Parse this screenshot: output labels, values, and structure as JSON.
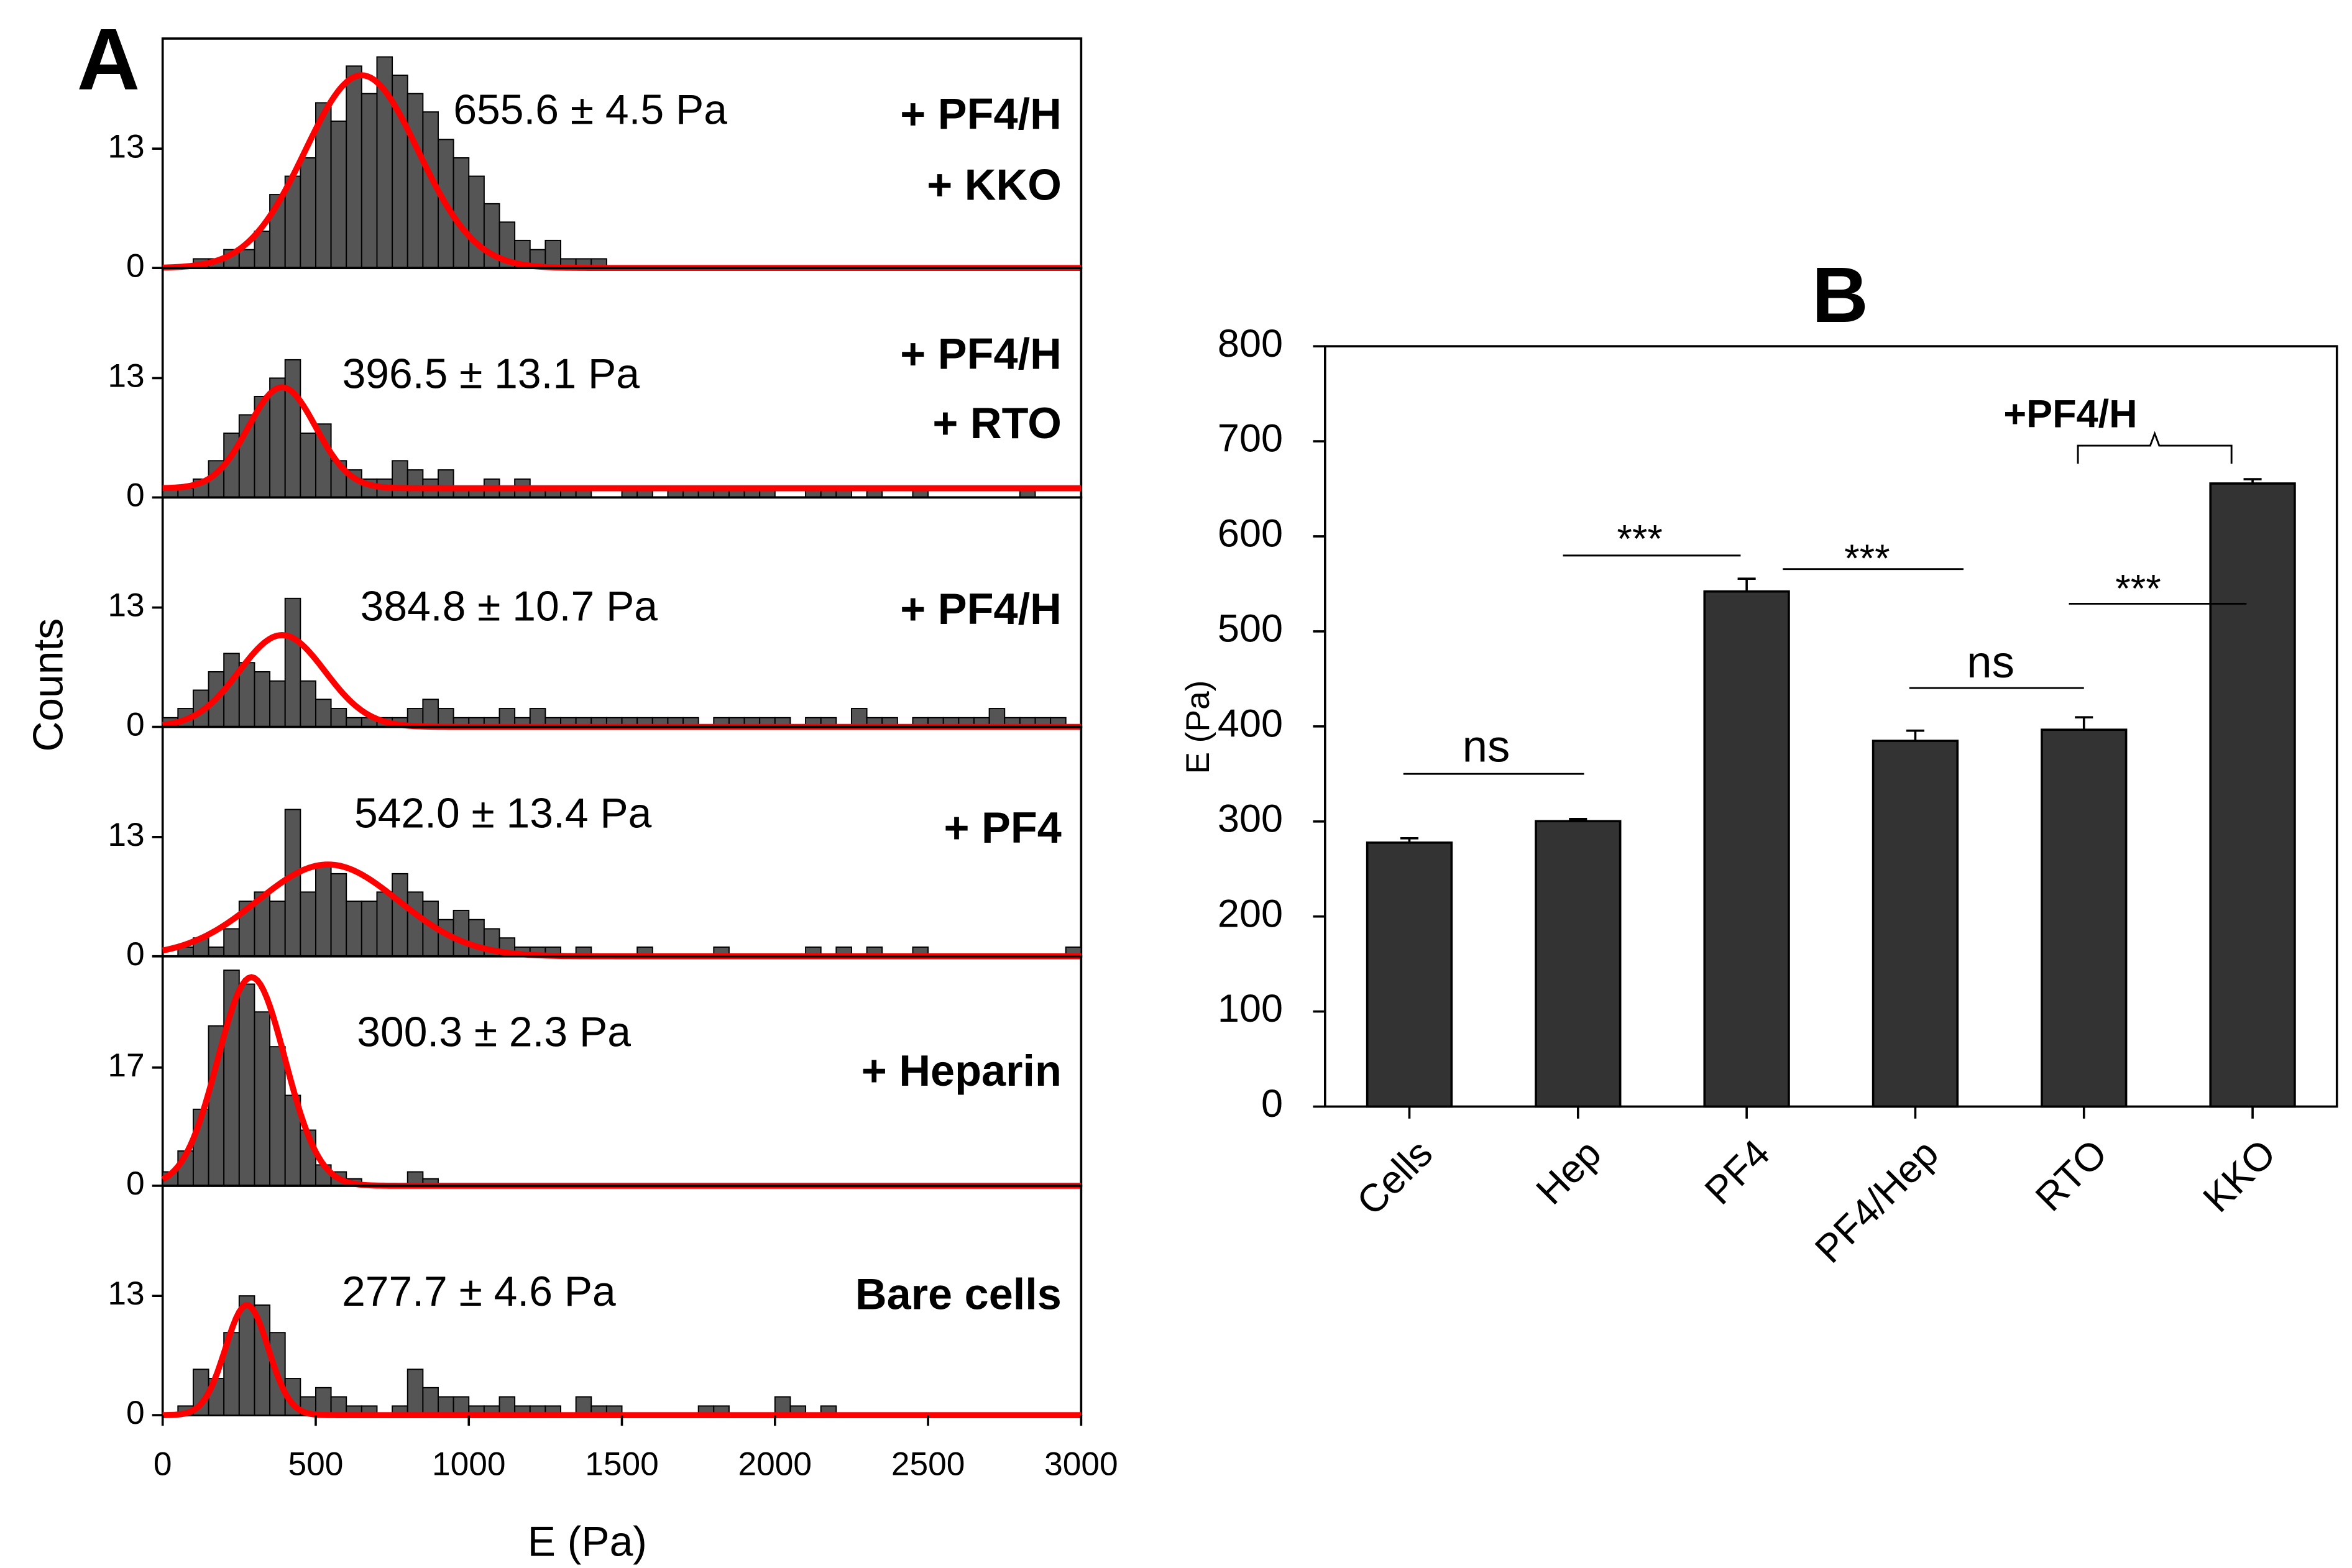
{
  "figure": {
    "panel_label": "A",
    "ylabel": "Counts",
    "xlabel": "E (Pa)"
  },
  "chart_data": [
    {
      "type": "histogram",
      "annotation": "655.6 ± 4.5 Pa",
      "label": [
        "+ PF4/H",
        "+ KKO"
      ],
      "color": "#555555",
      "fit_color": "#ff0000",
      "fit": {
        "center": 650,
        "sigma": 185,
        "amplitude": 21,
        "baseline": 0
      },
      "bins": [
        0,
        50,
        100,
        150,
        200,
        250,
        300,
        350,
        400,
        450,
        500,
        550,
        600,
        650,
        700,
        750,
        800,
        850,
        900,
        950,
        1000,
        1050,
        1100,
        1150,
        1200,
        1250,
        1300,
        1350,
        1400,
        1450,
        1500,
        1550,
        1600,
        1650,
        1700,
        1750,
        1800,
        1850,
        1900,
        1950,
        2000,
        2050,
        2100,
        2150,
        2200,
        2250,
        2300,
        2350,
        2400,
        2450,
        2500,
        2550,
        2600,
        2650,
        2700,
        2750,
        2800,
        2850,
        2900,
        2950,
        3000
      ],
      "values": [
        0,
        0,
        1,
        1,
        2,
        2,
        4,
        8,
        10,
        12,
        18,
        16,
        22,
        19,
        23,
        21,
        19,
        17,
        14,
        12,
        10,
        7,
        5,
        3,
        2,
        3,
        1,
        1,
        1,
        0,
        0,
        0,
        0,
        0,
        0,
        0,
        0,
        0,
        0,
        0,
        0,
        0,
        0,
        0,
        0,
        0,
        0,
        0,
        0,
        0,
        0,
        0,
        0,
        0,
        0,
        0,
        0,
        0,
        0,
        0
      ],
      "xlim": [
        0,
        3000
      ],
      "ylim": [
        0,
        25
      ],
      "yticks": [
        0,
        13
      ]
    },
    {
      "type": "histogram",
      "annotation": "396.5 ± 13.1 Pa",
      "label": [
        "+ PF4/H",
        "+ RTO"
      ],
      "color": "#555555",
      "fit_color": "#ff0000",
      "fit": {
        "center": 390,
        "sigma": 110,
        "amplitude": 11,
        "baseline": 1
      },
      "bins": [
        0,
        50,
        100,
        150,
        200,
        250,
        300,
        350,
        400,
        450,
        500,
        550,
        600,
        650,
        700,
        750,
        800,
        850,
        900,
        950,
        1000,
        1050,
        1100,
        1150,
        1200,
        1250,
        1300,
        1350,
        1400,
        1450,
        1500,
        1550,
        1600,
        1650,
        1700,
        1750,
        1800,
        1850,
        1900,
        1950,
        2000,
        2050,
        2100,
        2150,
        2200,
        2250,
        2300,
        2350,
        2400,
        2450,
        2500,
        2550,
        2600,
        2650,
        2700,
        2750,
        2800,
        2850,
        2900,
        2950,
        3000
      ],
      "values": [
        1,
        1,
        2,
        4,
        7,
        9,
        11,
        13,
        15,
        7,
        8,
        4,
        3,
        2,
        2,
        4,
        3,
        2,
        3,
        1,
        1,
        2,
        1,
        2,
        1,
        1,
        1,
        1,
        0,
        0,
        1,
        1,
        0,
        1,
        1,
        1,
        1,
        1,
        1,
        1,
        0,
        0,
        1,
        1,
        1,
        0,
        1,
        0,
        0,
        1,
        0,
        0,
        0,
        0,
        0,
        0,
        1,
        0,
        0,
        0
      ],
      "xlim": [
        0,
        3000
      ],
      "ylim": [
        0,
        25
      ],
      "yticks": [
        0,
        13
      ]
    },
    {
      "type": "histogram",
      "annotation": "384.8 ± 10.7 Pa",
      "label": [
        "+ PF4/H"
      ],
      "color": "#555555",
      "fit_color": "#ff0000",
      "fit": {
        "center": 390,
        "sigma": 140,
        "amplitude": 10,
        "baseline": 0
      },
      "bins": [
        0,
        50,
        100,
        150,
        200,
        250,
        300,
        350,
        400,
        450,
        500,
        550,
        600,
        650,
        700,
        750,
        800,
        850,
        900,
        950,
        1000,
        1050,
        1100,
        1150,
        1200,
        1250,
        1300,
        1350,
        1400,
        1450,
        1500,
        1550,
        1600,
        1650,
        1700,
        1750,
        1800,
        1850,
        1900,
        1950,
        2000,
        2050,
        2100,
        2150,
        2200,
        2250,
        2300,
        2350,
        2400,
        2450,
        2500,
        2550,
        2600,
        2650,
        2700,
        2750,
        2800,
        2850,
        2900,
        2950,
        3000
      ],
      "values": [
        1,
        2,
        4,
        6,
        8,
        7,
        6,
        5,
        14,
        5,
        3,
        2,
        1,
        1,
        1,
        1,
        2,
        3,
        2,
        1,
        1,
        1,
        2,
        1,
        2,
        1,
        1,
        1,
        1,
        1,
        1,
        1,
        1,
        1,
        1,
        0,
        1,
        1,
        1,
        1,
        1,
        0,
        1,
        1,
        0,
        2,
        1,
        1,
        0,
        1,
        1,
        1,
        1,
        1,
        2,
        1,
        1,
        1,
        1,
        0
      ],
      "xlim": [
        0,
        3000
      ],
      "ylim": [
        0,
        25
      ],
      "yticks": [
        0,
        13
      ]
    },
    {
      "type": "histogram",
      "annotation": "542.0 ± 13.4 Pa",
      "label": [
        "+ PF4"
      ],
      "color": "#555555",
      "fit_color": "#ff0000",
      "fit": {
        "center": 540,
        "sigma": 230,
        "amplitude": 10,
        "baseline": 0
      },
      "bins": [
        0,
        50,
        100,
        150,
        200,
        250,
        300,
        350,
        400,
        450,
        500,
        550,
        600,
        650,
        700,
        750,
        800,
        850,
        900,
        950,
        1000,
        1050,
        1100,
        1150,
        1200,
        1250,
        1300,
        1350,
        1400,
        1450,
        1500,
        1550,
        1600,
        1650,
        1700,
        1750,
        1800,
        1850,
        1900,
        1950,
        2000,
        2050,
        2100,
        2150,
        2200,
        2250,
        2300,
        2350,
        2400,
        2450,
        2500,
        2550,
        2600,
        2650,
        2700,
        2750,
        2800,
        2850,
        2900,
        2950,
        3000
      ],
      "values": [
        0,
        1,
        2,
        1,
        3,
        6,
        7,
        6,
        16,
        7,
        10,
        9,
        6,
        6,
        7,
        9,
        7,
        6,
        4,
        5,
        4,
        3,
        2,
        1,
        1,
        1,
        0,
        1,
        0,
        0,
        0,
        1,
        0,
        0,
        0,
        0,
        1,
        0,
        0,
        0,
        0,
        0,
        1,
        0,
        1,
        0,
        1,
        0,
        0,
        1,
        0,
        0,
        0,
        0,
        0,
        0,
        0,
        0,
        0,
        1
      ],
      "xlim": [
        0,
        3000
      ],
      "ylim": [
        0,
        25
      ],
      "yticks": [
        0,
        13
      ]
    },
    {
      "type": "histogram",
      "annotation": "300.3 ± 2.3 Pa",
      "label": [
        "+ Heparin"
      ],
      "color": "#555555",
      "fit_color": "#ff0000",
      "fit": {
        "center": 290,
        "sigma": 110,
        "amplitude": 30,
        "baseline": 0
      },
      "bins": [
        0,
        50,
        100,
        150,
        200,
        250,
        300,
        350,
        400,
        450,
        500,
        550,
        600,
        650,
        700,
        750,
        800,
        850,
        900,
        950,
        1000,
        1050,
        1100,
        1150,
        1200,
        1250,
        1300,
        1350,
        1400,
        1450,
        1500,
        1550,
        1600,
        1650,
        1700,
        1750,
        1800,
        1850,
        1900,
        1950,
        2000,
        2050,
        2100,
        2150,
        2200,
        2250,
        2300,
        2350,
        2400,
        2450,
        2500,
        2550,
        2600,
        2650,
        2700,
        2750,
        2800,
        2850,
        2900,
        2950,
        3000
      ],
      "values": [
        2,
        5,
        11,
        23,
        31,
        29,
        25,
        20,
        13,
        8,
        3,
        2,
        1,
        0,
        0,
        0,
        2,
        1,
        0,
        0,
        0,
        0,
        0,
        0,
        0,
        0,
        0,
        0,
        0,
        0,
        0,
        0,
        0,
        0,
        0,
        0,
        0,
        0,
        0,
        0,
        0,
        0,
        0,
        0,
        0,
        0,
        0,
        0,
        0,
        0,
        0,
        0,
        0,
        0,
        0,
        0,
        0,
        0,
        0,
        0
      ],
      "xlim": [
        0,
        3000
      ],
      "ylim": [
        0,
        33
      ],
      "yticks": [
        0,
        17
      ]
    },
    {
      "type": "histogram",
      "annotation": "277.7 ± 4.6 Pa",
      "label": [
        "Bare cells"
      ],
      "color": "#555555",
      "fit_color": "#ff0000",
      "fit": {
        "center": 275,
        "sigma": 70,
        "amplitude": 12,
        "baseline": 0
      },
      "bins": [
        0,
        50,
        100,
        150,
        200,
        250,
        300,
        350,
        400,
        450,
        500,
        550,
        600,
        650,
        700,
        750,
        800,
        850,
        900,
        950,
        1000,
        1050,
        1100,
        1150,
        1200,
        1250,
        1300,
        1350,
        1400,
        1450,
        1500,
        1550,
        1600,
        1650,
        1700,
        1750,
        1800,
        1850,
        1900,
        1950,
        2000,
        2050,
        2100,
        2150,
        2200,
        2250,
        2300,
        2350,
        2400,
        2450,
        2500,
        2550,
        2600,
        2650,
        2700,
        2750,
        2800,
        2850,
        2900,
        2950,
        3000
      ],
      "values": [
        0,
        1,
        5,
        4,
        9,
        13,
        12,
        9,
        4,
        2,
        3,
        2,
        1,
        1,
        0,
        1,
        5,
        3,
        2,
        2,
        1,
        1,
        2,
        1,
        1,
        1,
        0,
        2,
        1,
        1,
        0,
        0,
        0,
        0,
        0,
        1,
        1,
        0,
        0,
        0,
        2,
        1,
        0,
        1,
        0,
        0,
        0,
        0,
        0,
        0,
        0,
        0,
        0,
        0,
        0,
        0,
        0,
        0,
        0,
        0
      ],
      "xlim": [
        0,
        3000
      ],
      "ylim": [
        0,
        25
      ],
      "yticks": [
        0,
        13
      ],
      "xticks": [
        0,
        500,
        1000,
        1500,
        2000,
        2500,
        3000
      ]
    },
    {
      "type": "bar",
      "title": "B",
      "ylabel": "E (Pa)",
      "color": "#333333",
      "categories": [
        "Cells",
        "Hep",
        "PF4",
        "PF4/Hep",
        "RTO",
        "KKO"
      ],
      "values": [
        277.7,
        300.3,
        542.0,
        384.8,
        396.5,
        655.6
      ],
      "errors": [
        4.6,
        2.3,
        13.4,
        10.7,
        13.1,
        4.5
      ],
      "ylim": [
        0,
        800
      ],
      "yticks": [
        0,
        100,
        200,
        300,
        400,
        500,
        600,
        700,
        800
      ],
      "annotations": [
        "ns",
        "***",
        "***",
        "ns",
        "***",
        "+PF4/H"
      ]
    }
  ]
}
